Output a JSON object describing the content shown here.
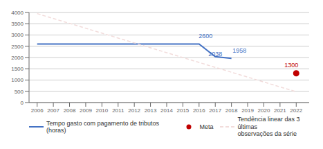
{
  "chart_data": {
    "type": "line",
    "series": [
      {
        "name": "Tempo gasto com pagamento de tributos (horas)",
        "type": "line",
        "color": "#4472C4",
        "line_style": "solid",
        "x": [
          2006,
          2007,
          2008,
          2009,
          2010,
          2011,
          2012,
          2013,
          2014,
          2015,
          2016,
          2017,
          2018
        ],
        "values": [
          2600,
          2600,
          2600,
          2600,
          2600,
          2600,
          2600,
          2600,
          2600,
          2600,
          2600,
          2038,
          1958
        ]
      },
      {
        "name": "Meta",
        "type": "scatter",
        "color": "#C00000",
        "marker": "circle",
        "x": [
          2022
        ],
        "values": [
          1300
        ]
      },
      {
        "name": "Tendência linear das 3 últimas\nobservações da série",
        "type": "line",
        "color": "#F2DCDB",
        "line_style": "dashed",
        "x": [
          2006,
          2022
        ],
        "values": [
          3950,
          480
        ]
      }
    ],
    "annotations": [
      {
        "text": "2600",
        "x": 2016.4,
        "y": 2720,
        "color": "#4472C4"
      },
      {
        "text": "2038",
        "x": 2017,
        "y": 1898,
        "color": "#4472C4"
      },
      {
        "text": "1958",
        "x": 2018.5,
        "y": 2058,
        "color": "#4472C4"
      },
      {
        "text": "1300",
        "x": 2021.7,
        "y": 1420,
        "color": "#C00000"
      }
    ],
    "xlim": [
      2005.5,
      2022.8
    ],
    "xticks": [
      2006,
      2007,
      2008,
      2009,
      2010,
      2011,
      2012,
      2013,
      2014,
      2015,
      2016,
      2017,
      2018,
      2019,
      2020,
      2021,
      2022
    ],
    "ylim": [
      0,
      4000
    ],
    "yticks": [
      0,
      500,
      1000,
      1500,
      2000,
      2500,
      3000,
      3500,
      4000
    ],
    "grid": true,
    "legend": "bottom"
  }
}
